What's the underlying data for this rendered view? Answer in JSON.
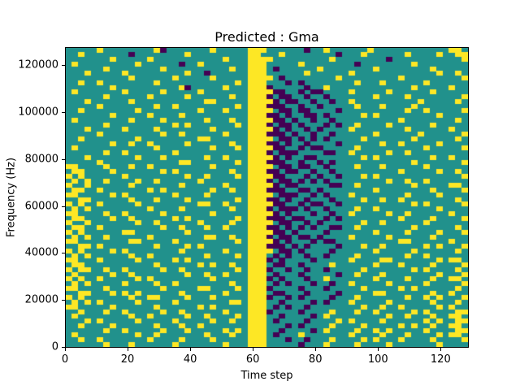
{
  "figure": {
    "title": "Predicted : Gma"
  },
  "chart_data": {
    "type": "heatmap",
    "title": "Predicted : Gma",
    "xlabel": "Time step",
    "ylabel": "Frequency (Hz)",
    "xlim": [
      0,
      129
    ],
    "ylim": [
      0,
      128000
    ],
    "x_ticks": [
      0,
      20,
      40,
      60,
      80,
      100,
      120
    ],
    "y_ticks": [
      0,
      20000,
      40000,
      60000,
      80000,
      100000,
      120000
    ],
    "legend": "none",
    "grid": "off",
    "colormap": "viridis",
    "cell_colors": {
      "0": "#21918c",
      "1": "#fde725",
      "2": "#440154"
    },
    "cell_legend": {
      "0": "mid/teal (background class)",
      "1": "yellow (active class)",
      "2": "purple (low class)"
    },
    "grid_cols": 64,
    "grid_rows": 64,
    "row_order": "top_to_bottom",
    "notes": "Binary-like spectrogram prediction map; dense yellow vertical band near time step 60, dense purple cluster near time steps 66-82 at mid/high frequencies, yellow clusters at left edge and lower-left; values estimated from pixels.",
    "rows": [
      "0000010000000012000000010000011100000020010000001000000000000110",
      "0010000000200000000100000000011000100000000200010000001000010011",
      "0000000100000100000000000100011110000000001000000002000000000001",
      "0100000000010000002001000000011100000100000000200000000100000000",
      "0000001000000001000000000010011102000000100000000100000000100000",
      "0001000001000000000100200000011100000010000001000000000000010010",
      "0000000000100000010000010000011110200000000100000000010000000001",
      "0010010000000010000000000001011100020200000000100010000001000000",
      "0000000100000000001200000100011120000020010000000000000100000100",
      "0100000001000001000001000000011112200202200001000001000000100000",
      "0000001000000100000100000010011120220020020000000100001000000001",
      "0001000000100000000000110000011112022002002001000000000010000010",
      "0000010000000010010000000001011122200200200000100010000100000000",
      "0010000000010000000001000100011110220220000200000000001001000001",
      "0000000100000100001000000000011122020022020000010100000000010000",
      "0100000000100001000000100010011112202002002000000000010000000010",
      "0000001000000000010100000001011120220200020200100001000000100000",
      "0001000001000010000000010000011112020020200001000000001000000100",
      "0000010000000001001000000100011122202002002000000100000010000001",
      "0010000000010000000001100000011110220202020000010000000100000010",
      "0000000100100100000100000010011122020020000200000010010000010000",
      "0100000000000010000000010001011112200202200000100000000001000001",
      "0000001001000000010000000000011120222000022001000001001000000000",
      "0001000000010001000000100100011112020022000000010100000000100100",
      "0000010000000000001100000001011122200200202000000000000100000001",
      "1100001000100100000000010000011110220220020000100010000001000000",
      "0110000100000001010000000010011122022002002000000000010000010010",
      "1010000001000000000100100001011112200020200200010100000000000001",
      "0101001000010010000001000000011120220202020000000001001001000000",
      "1001000000100000001000000100011112022000002200100000000100000110",
      "0110010000000101000000010010011122200220200000000100000000100001",
      "1100000101000000010000100000011110222002020001000000001000010000",
      "0011000000100010000100000001011122020020002000010010010000000010",
      "1010010000010000000001100100011112200202200200000000000101000001",
      "0101000000000100001000000010011120222020020000100100000000010000",
      "1100001001000001000000010000011112020002002001000001001000000100",
      "0110000100100000010100000001011122202200020200000000010000100001",
      "1001000000010010000001000010011110220020200000010010000001000000",
      "0110010000000001001000100100011122020202002200100000000100000010",
      "1010000001100000000100000000011112202000020000000100001000010001",
      "0101001000000100000000110010011120220220200001000001000000100000",
      "1100000000110000010000000001011112020002022000000000011000000100",
      "0011010000000010000101000000011122202020000200010010000001010001",
      "1010000101000000001000000100011110220200002000000100000100000010",
      "0101000000100100000000100001011102020020020000100000001001000000",
      "1100010000010000010100000000011120200002000001000011000000010110",
      "0110000000000010000001010010011102200200001000000100010000100001",
      "1011001001000001001000000001011120020020020000010000000101000010",
      "0100000100100000000100100100011102000200000200100010000000010001",
      "1010010000010100000000010000011120200020010000000100001000100110",
      "0101000001000010010000000010011102020002002001000001000001000001",
      "1100001000000001000001100001011120000200020000010000010100000010",
      "0011000101010000001000000100011102200020000200000110000000100100",
      "1010000000100110000100010000011120020200002000100000001001010001",
      "0101010000010000010000000011011100200002020001000001000000100010",
      "1100000100000010000001010000011102020020000000010010010000010100",
      "0010001001000001001000000100011120000200001000100100000101000011",
      "0100000000100100000100100001011100200002010000000001001000100110",
      "0001010000010000010000010010011102000020000101000010000001010011",
      "0010000100000010001001000000011100020200001000010000010100100110",
      "0000001001000001000100000101011100200002010000100101000001000011",
      "0100000000010010000000100010011102000100000001000010001000010110",
      "0010010000000100001000010000011100020020001000010100010000100001",
      "0000001000100000010000000100011100000200010000100001000000010000"
    ]
  }
}
